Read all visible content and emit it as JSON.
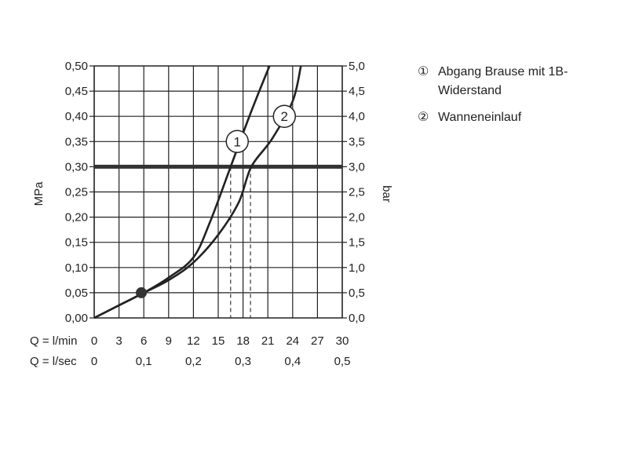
{
  "chart_data": {
    "type": "line",
    "y_left": {
      "label": "MPa",
      "range": [
        0,
        0.5
      ],
      "ticks": [
        "0,00",
        "0,05",
        "0,10",
        "0,15",
        "0,20",
        "0,25",
        "0,30",
        "0,35",
        "0,40",
        "0,45",
        "0,50"
      ]
    },
    "y_right": {
      "label": "bar",
      "range": [
        0,
        5
      ],
      "ticks": [
        "0,0",
        "0,5",
        "1,0",
        "1,5",
        "2,0",
        "2,5",
        "3,0",
        "3,5",
        "4,0",
        "4,5",
        "5,0"
      ]
    },
    "x_primary": {
      "label": "Q = l/min",
      "range": [
        0,
        30
      ],
      "ticks": [
        "0",
        "3",
        "6",
        "9",
        "12",
        "15",
        "18",
        "21",
        "24",
        "27",
        "30"
      ]
    },
    "x_secondary": {
      "label": "Q = l/sec",
      "ticks": [
        "0",
        "0,1",
        "0,2",
        "0,3",
        "0,4",
        "0,5"
      ]
    },
    "grid": true,
    "series": [
      {
        "name": "Abgang Brause mit 1B-Widerstand",
        "marker": "①",
        "x": [
          0,
          3,
          6,
          9,
          12,
          14,
          16.5,
          19,
          21.2
        ],
        "y": [
          0,
          0.025,
          0.05,
          0.08,
          0.12,
          0.19,
          0.3,
          0.41,
          0.5
        ]
      },
      {
        "name": "Wanneneinlauf",
        "marker": "②",
        "x": [
          0,
          3,
          6,
          9,
          12,
          15,
          17.5,
          19,
          21.5,
          24,
          25
        ],
        "y": [
          0,
          0.025,
          0.05,
          0.075,
          0.11,
          0.165,
          0.23,
          0.3,
          0.355,
          0.43,
          0.5
        ]
      }
    ],
    "reference_line": {
      "y": 0.3
    },
    "operating_point": {
      "x": 5.7,
      "y": 0.05
    },
    "drop_lines": [
      {
        "x": 16.5,
        "y": 0.3
      },
      {
        "x": 18.9,
        "y": 0.3
      }
    ],
    "label_markers": [
      {
        "text": "①",
        "x": 17.3,
        "y": 0.35
      },
      {
        "text": "②",
        "x": 23.0,
        "y": 0.4
      }
    ],
    "legend": [
      {
        "num": "①",
        "label": "Abgang Brause mit 1B-Widerstand"
      },
      {
        "num": "②",
        "label": "Wanneneinlauf"
      }
    ]
  }
}
